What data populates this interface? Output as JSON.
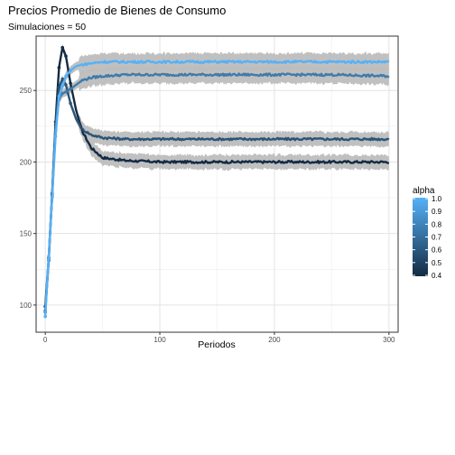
{
  "chart_data": {
    "type": "line",
    "title": "Precios Promedio de Bienes de Consumo",
    "subtitle": "Simulaciones = 50",
    "xlabel": "Periodos",
    "ylabel": "",
    "xlim": [
      -8,
      308
    ],
    "ylim": [
      81,
      288
    ],
    "x_ticks": [
      0,
      100,
      200,
      300
    ],
    "y_ticks": [
      100,
      150,
      200,
      250
    ],
    "grid": true,
    "band": "gray confidence ribbon around each series",
    "legend": {
      "title": "alpha",
      "position": "right",
      "ticks": [
        "1.0",
        "0.9",
        "0.8",
        "0.7",
        "0.6",
        "0.5",
        "0.4"
      ],
      "color_low": "#132B43",
      "color_high": "#56B1F7"
    },
    "series": [
      {
        "alpha": 0.4,
        "color": "#132b43",
        "band": 5,
        "x": [
          0,
          3,
          6,
          9,
          12,
          15,
          18,
          22,
          27,
          32,
          40,
          50,
          70,
          100,
          150,
          200,
          250,
          300
        ],
        "y": [
          99,
          133,
          178,
          228,
          266,
          280,
          274,
          255,
          236,
          222,
          210,
          203,
          201,
          200,
          200,
          200,
          200,
          200
        ]
      },
      {
        "alpha": 0.6,
        "color": "#2b5478",
        "band": 5,
        "x": [
          0,
          3,
          6,
          9,
          12,
          15,
          18,
          22,
          27,
          32,
          40,
          50,
          70,
          100,
          150,
          200,
          250,
          300
        ],
        "y": [
          96,
          131,
          177,
          226,
          252,
          258,
          254,
          241,
          230,
          223,
          219,
          217,
          216,
          216,
          216,
          216,
          216,
          216
        ]
      },
      {
        "alpha": 0.8,
        "color": "#3f7bab",
        "band": 6,
        "x": [
          0,
          3,
          6,
          9,
          12,
          15,
          18,
          22,
          27,
          32,
          40,
          50,
          70,
          100,
          150,
          200,
          250,
          300
        ],
        "y": [
          95,
          132,
          176,
          222,
          244,
          248,
          249,
          251,
          254,
          257,
          259,
          260,
          261,
          261,
          261,
          261,
          261,
          260
        ]
      },
      {
        "alpha": 1.0,
        "color": "#56b1f7",
        "band": 6,
        "x": [
          0,
          3,
          6,
          9,
          12,
          15,
          18,
          22,
          27,
          32,
          40,
          50,
          70,
          100,
          150,
          200,
          250,
          300
        ],
        "y": [
          92,
          134,
          175,
          218,
          246,
          253,
          260,
          264,
          267,
          268,
          269,
          270,
          270,
          270,
          270,
          270,
          270,
          270
        ]
      }
    ]
  }
}
